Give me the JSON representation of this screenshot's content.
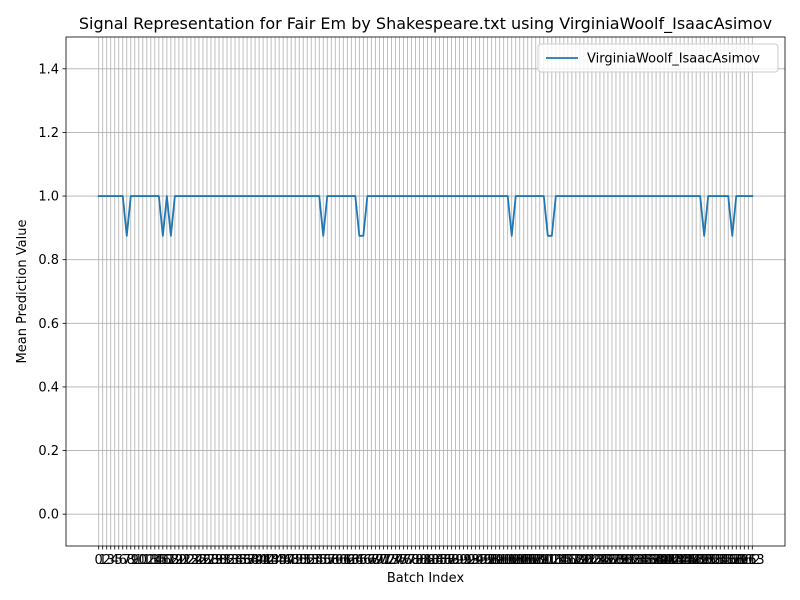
{
  "chart_data": {
    "type": "line",
    "title": "Signal Representation for Fair Em by Shakespeare.txt using VirginiaWoolf_IsaacAsimov",
    "xlabel": "Batch Index",
    "ylabel": "Mean Prediction Value",
    "xlim": [
      -0.5,
      163.5
    ],
    "ylim": [
      -0.1,
      1.5
    ],
    "yticks": [
      0.0,
      0.2,
      0.4,
      0.6,
      0.8,
      1.0,
      1.2,
      1.4
    ],
    "ytick_labels": [
      "0.0",
      "0.2",
      "0.4",
      "0.6",
      "0.8",
      "1.0",
      "1.2",
      "1.4"
    ],
    "x_tick_count": 164,
    "xticks_shown": "every batch index 0-163, labels overlapping",
    "grid": true,
    "legend_position": "upper right",
    "series": [
      {
        "name": "VirginiaWoolf_IsaacAsimov",
        "color": "#1f77b4",
        "n_points": 164,
        "default_value": 1.0,
        "dips": [
          {
            "x": 7,
            "y": 0.875
          },
          {
            "x": 16,
            "y": 0.875
          },
          {
            "x": 18,
            "y": 0.875
          },
          {
            "x": 56,
            "y": 0.875
          },
          {
            "x": 65,
            "y": 0.875
          },
          {
            "x": 66,
            "y": 0.875
          },
          {
            "x": 103,
            "y": 0.875
          },
          {
            "x": 112,
            "y": 0.875
          },
          {
            "x": 113,
            "y": 0.875
          },
          {
            "x": 151,
            "y": 0.875
          },
          {
            "x": 158,
            "y": 0.875
          }
        ]
      }
    ]
  }
}
